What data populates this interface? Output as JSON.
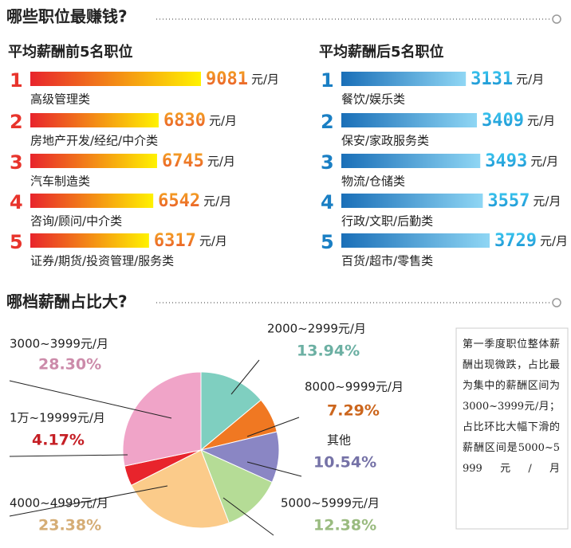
{
  "header": {
    "title": "哪些职位最赚钱?"
  },
  "chart_data": [
    {
      "type": "bar",
      "title": "平均薪酬前5名职位",
      "ranks": [
        1,
        2,
        3,
        4,
        5
      ],
      "categories": [
        "高级管理类",
        "房地产开发/经纪/中介类",
        "汽车制造类",
        "咨询/顾问/中介类",
        "证券/期货/投资管理/服务类"
      ],
      "values": [
        9081,
        6830,
        6745,
        6542,
        6317
      ],
      "unit": "元/月",
      "color": "#e8342c"
    },
    {
      "type": "bar",
      "title": "平均薪酬后5名职位",
      "ranks": [
        1,
        2,
        3,
        4,
        5
      ],
      "categories": [
        "餐饮/娱乐类",
        "保安/家政服务类",
        "物流/仓储类",
        "行政/文职/后勤类",
        "百货/超市/零售类"
      ],
      "values": [
        3131,
        3409,
        3493,
        3557,
        3729
      ],
      "unit": "元/月",
      "color": "#1a7fc4"
    },
    {
      "type": "pie",
      "title": "哪档薪酬占比大?",
      "categories": [
        "2000~2999元/月",
        "8000~9999元/月",
        "其他",
        "5000~5999元/月",
        "4000~4999元/月",
        "1万~19999元/月",
        "3000~3999元/月"
      ],
      "values": [
        13.94,
        7.29,
        10.54,
        12.38,
        23.38,
        4.17,
        28.3
      ],
      "value_labels": [
        "13.94%",
        "7.29%",
        "10.54%",
        "12.38%",
        "23.38%",
        "4.17%",
        "28.30%"
      ],
      "colors": [
        "#7fcfc0",
        "#f07822",
        "#8a86c4",
        "#b5dc96",
        "#fbcb8a",
        "#e8242c",
        "#f0a4c8"
      ]
    }
  ],
  "note": "第一季度职位整体薪酬出现微跌，占比最为集中的薪酬区间为3000~3999元/月；占比环比大幅下滑的薪酬区间是5000~5999元/月"
}
